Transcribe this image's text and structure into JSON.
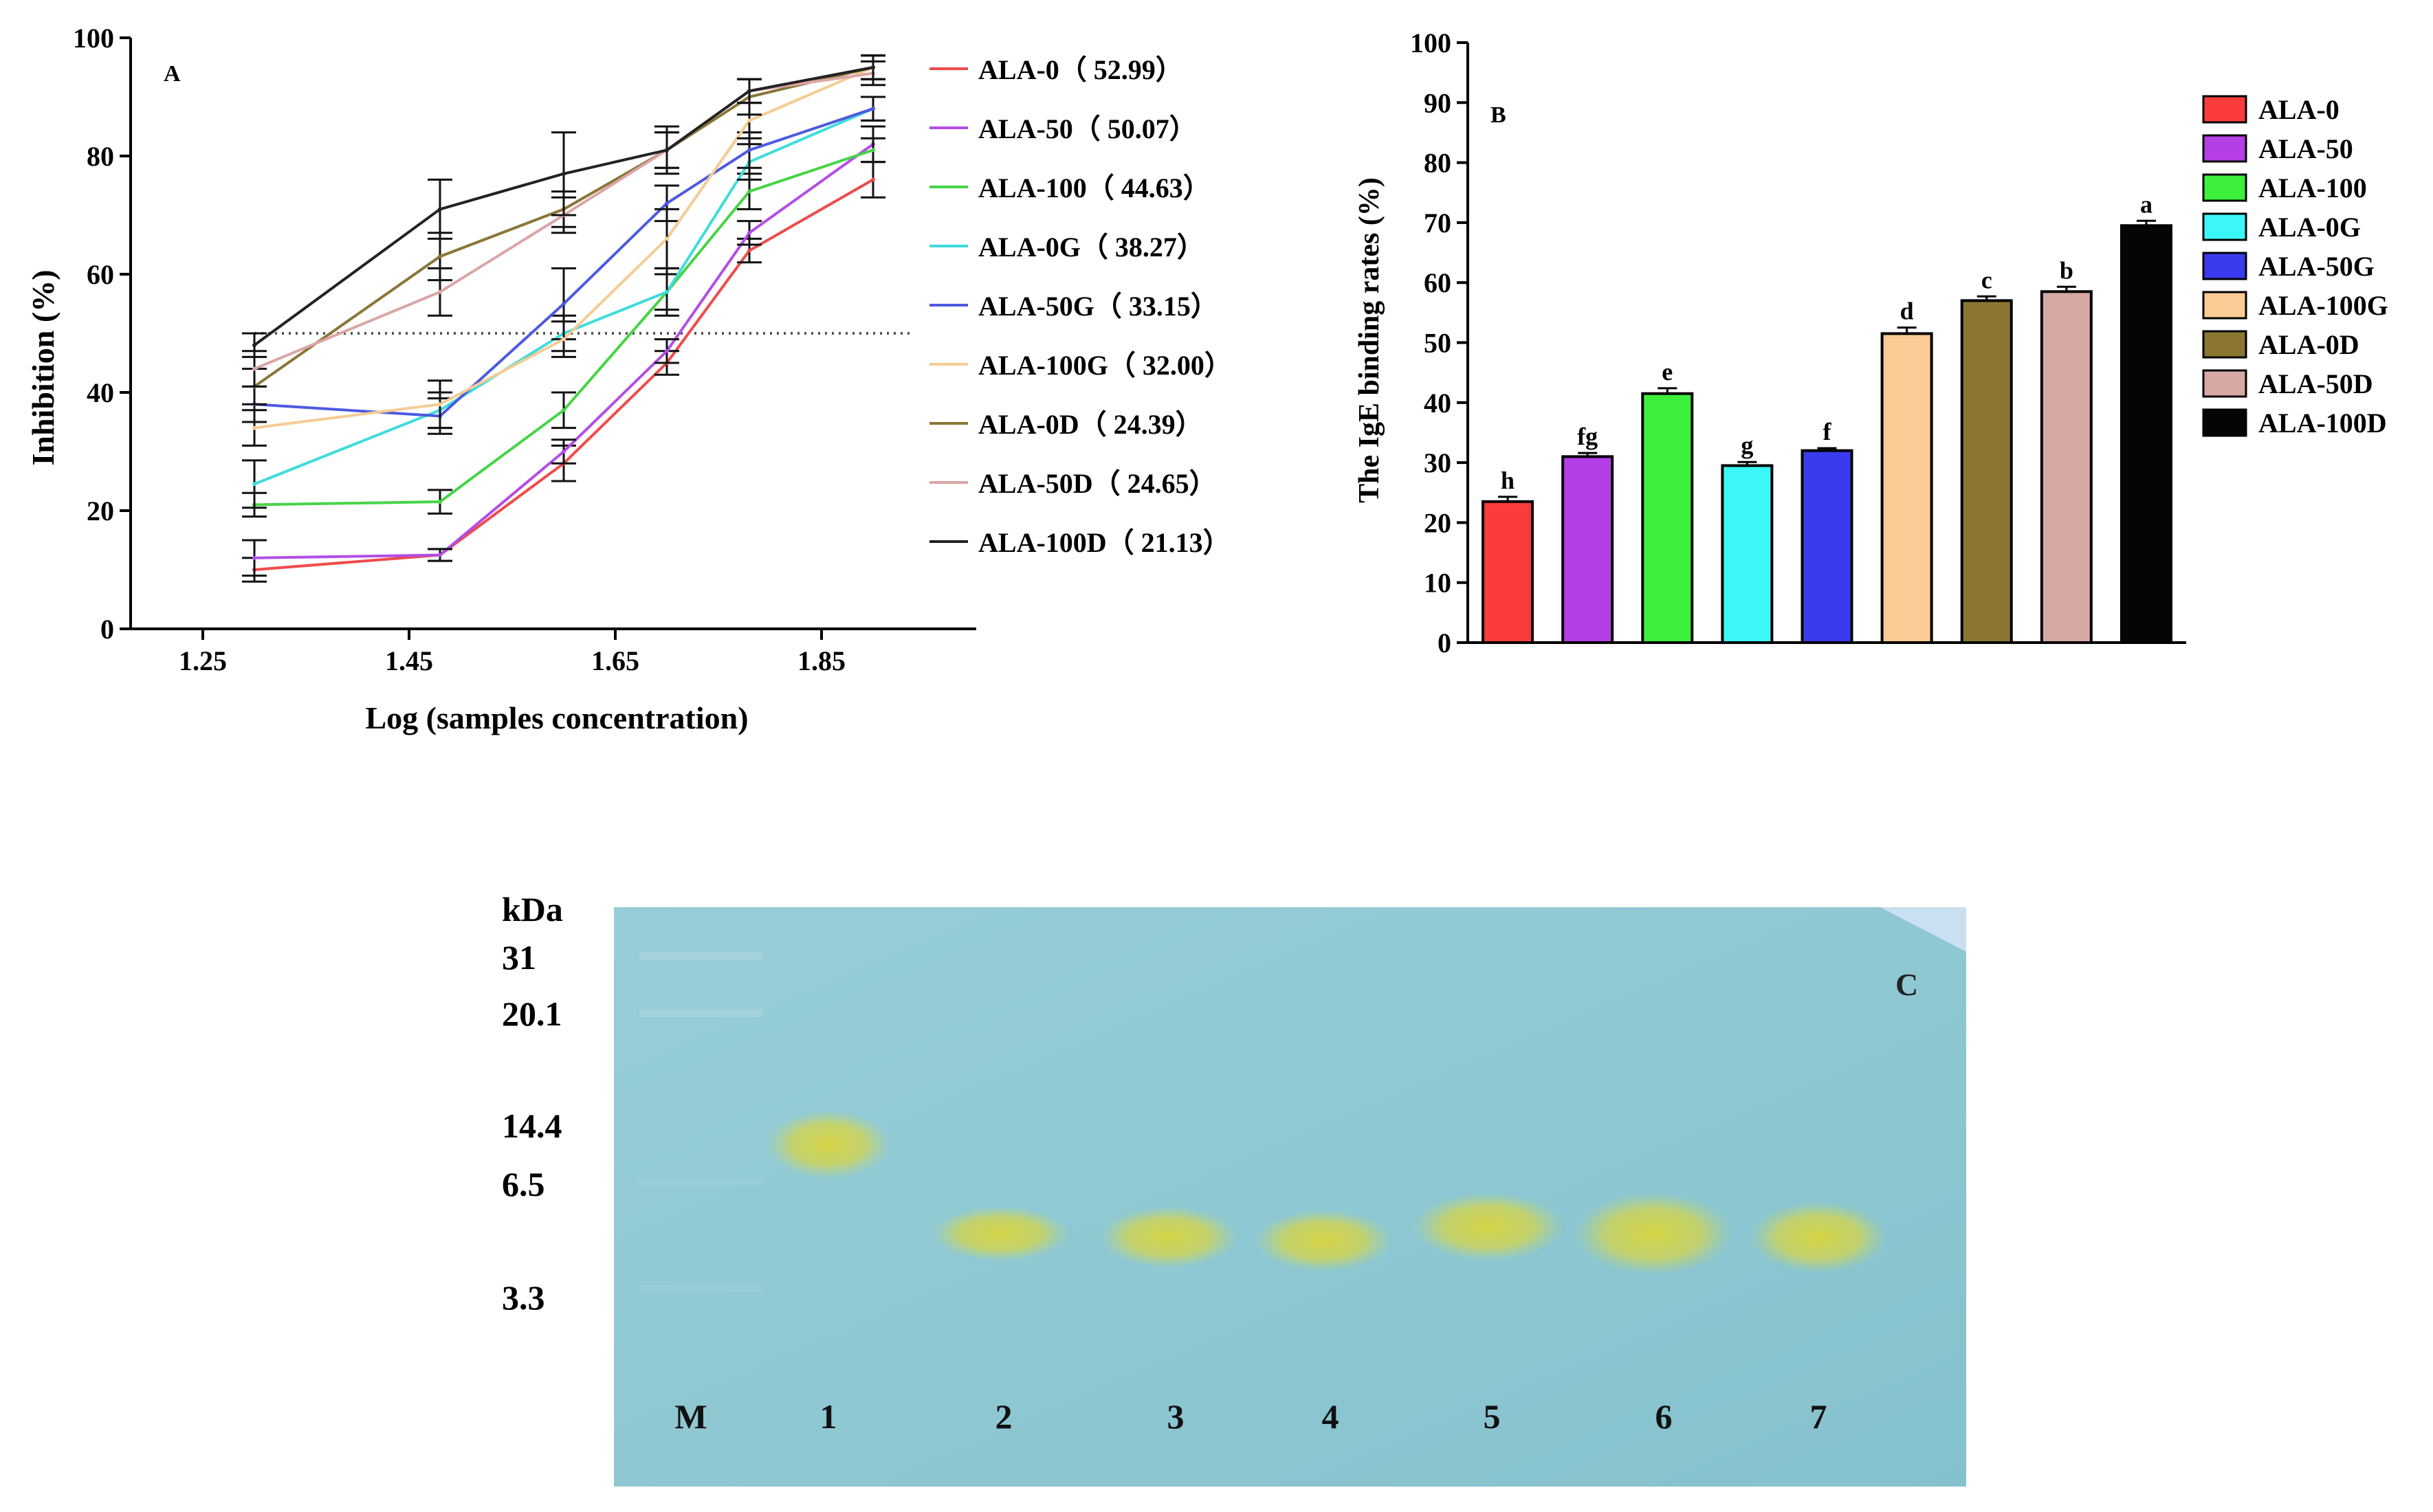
{
  "chart_data": [
    {
      "panel": "A",
      "type": "line",
      "panel_label": "A",
      "xlabel": "Log (samples concentration)",
      "ylabel": "Inhibition (%)",
      "xlim": [
        1.18,
        2.0
      ],
      "ylim": [
        0,
        100
      ],
      "xticks": [
        1.25,
        1.45,
        1.65,
        1.85
      ],
      "xtick_labels": [
        "1.25",
        "1.45",
        "1.65",
        "1.85"
      ],
      "yticks": [
        0,
        20,
        40,
        60,
        80,
        100
      ],
      "ytick_labels": [
        "0",
        "20",
        "40",
        "60",
        "80",
        "100"
      ],
      "reference_line": {
        "y": 50,
        "x_range": [
          1.3,
          1.9
        ],
        "style": "dotted"
      },
      "x": [
        1.3,
        1.48,
        1.6,
        1.7,
        1.78,
        1.9
      ],
      "series": [
        {
          "name": "ALA-0",
          "legend": "ALA-0（ 52.99）",
          "color": "#ef4b4b",
          "values": [
            10,
            12.5,
            28,
            45,
            64,
            76
          ],
          "err": [
            2,
            1,
            3,
            2,
            2,
            3
          ]
        },
        {
          "name": "ALA-50",
          "legend": "ALA-50（ 50.07）",
          "color": "#b34ee6",
          "values": [
            12,
            12.5,
            30,
            47,
            67,
            82
          ],
          "err": [
            3,
            1,
            2,
            2,
            2,
            3
          ]
        },
        {
          "name": "ALA-100",
          "legend": "ALA-100（ 44.63）",
          "color": "#47d447",
          "values": [
            21,
            21.5,
            37,
            57,
            74,
            81
          ],
          "err": [
            2,
            2,
            3,
            3,
            3,
            2
          ]
        },
        {
          "name": "ALA-0G",
          "legend": "ALA-0G（ 38.27）",
          "color": "#3fdcdc",
          "values": [
            24.5,
            37,
            50,
            57,
            79,
            88
          ],
          "err": [
            4,
            3,
            3,
            4,
            3,
            2
          ]
        },
        {
          "name": "ALA-50G",
          "legend": "ALA-50G（ 33.15）",
          "color": "#4d5ae0",
          "values": [
            38,
            36,
            55,
            72,
            81,
            88
          ],
          "err": [
            3,
            3,
            6,
            3,
            3,
            2
          ]
        },
        {
          "name": "ALA-100G",
          "legend": "ALA-100G（ 32.00）",
          "color": "#f5cc95",
          "values": [
            34,
            38,
            49,
            66,
            86,
            95
          ],
          "err": [
            3,
            4,
            3,
            5,
            3,
            2
          ]
        },
        {
          "name": "ALA-0D",
          "legend": "ALA-0D（ 24.39）",
          "color": "#8a7637",
          "values": [
            41,
            63,
            71,
            81,
            90,
            95
          ],
          "err": [
            3,
            4,
            3,
            3,
            3,
            2
          ]
        },
        {
          "name": "ALA-50D",
          "legend": "ALA-50D（ 24.65）",
          "color": "#dba6a6",
          "values": [
            44,
            57,
            70,
            81,
            91,
            94
          ],
          "err": [
            3,
            4,
            3,
            3,
            2,
            2
          ]
        },
        {
          "name": "ALA-100D",
          "legend": "ALA-100D（ 21.13）",
          "color": "#222222",
          "values": [
            48,
            71,
            77,
            81,
            91,
            95
          ],
          "err": [
            2,
            5,
            7,
            4,
            2,
            2
          ]
        }
      ]
    },
    {
      "panel": "B",
      "type": "bar",
      "panel_label": "B",
      "ylabel": "The IgE binding rates (%)",
      "ylim": [
        0,
        100
      ],
      "yticks": [
        0,
        10,
        20,
        30,
        40,
        50,
        60,
        70,
        80,
        90,
        100
      ],
      "ytick_labels": [
        "0",
        "10",
        "20",
        "30",
        "40",
        "50",
        "60",
        "70",
        "80",
        "90",
        "100"
      ],
      "categories": [
        "ALA-0",
        "ALA-50",
        "ALA-100",
        "ALA-0G",
        "ALA-50G",
        "ALA-100G",
        "ALA-0D",
        "ALA-50D",
        "ALA-100D"
      ],
      "values": [
        23.5,
        31,
        41.5,
        29.5,
        32,
        51.5,
        57,
        58.5,
        69.5
      ],
      "err": [
        0.8,
        0.6,
        0.9,
        0.6,
        0.4,
        1.0,
        0.7,
        0.8,
        0.8
      ],
      "significance": [
        "h",
        "fg",
        "e",
        "g",
        "f",
        "d",
        "c",
        "b",
        "a"
      ],
      "colors": [
        "#fa3c3c",
        "#b43fe6",
        "#3cf03c",
        "#3cf7f7",
        "#3a3aef",
        "#fbcb96",
        "#8b7732",
        "#d6a9a5",
        "#050505"
      ]
    }
  ],
  "gel": {
    "panel_label": "C",
    "unit_label": "kDa",
    "markers": [
      "31",
      "20.1",
      "14.4",
      "6.5",
      "3.3"
    ],
    "lanes": [
      "M",
      "1",
      "2",
      "3",
      "4",
      "5",
      "6",
      "7"
    ],
    "background_color": "#8fc7d3",
    "band_color": "#d9d24a"
  }
}
